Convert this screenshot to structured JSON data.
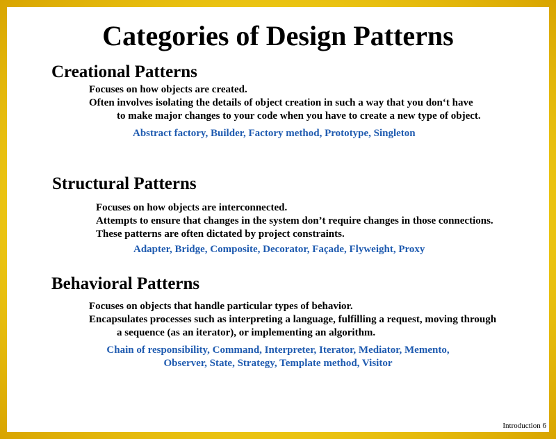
{
  "title": "Categories of Design Patterns",
  "sections": [
    {
      "heading": "Creational Patterns",
      "lines": [
        "Focuses on how objects are created.",
        "Often involves isolating the details of object creation in such  a way that you don‘t have",
        "to make major changes to your code when you have to create a new type of object."
      ],
      "examples": [
        "Abstract factory, Builder, Factory method,  Prototype, Singleton"
      ]
    },
    {
      "heading": "Structural Patterns",
      "lines": [
        "Focuses on how objects are interconnected.",
        "Attempts to ensure that changes in the system don’t require changes in those connections.",
        "These patterns are often dictated by project constraints."
      ],
      "examples": [
        "Adapter, Bridge, Composite, Decorator, Façade, Flyweight, Proxy"
      ]
    },
    {
      "heading": "Behavioral Patterns",
      "lines": [
        "Focuses on objects that handle particular types of behavior.",
        "Encapsulates processes such as interpreting a language, fulfilling a request, moving through",
        "a sequence (as an iterator), or implementing an algorithm."
      ],
      "examples": [
        "Chain of responsibility, Command, Interpreter, Iterator, Mediator, Memento,",
        "Observer, State, Strategy, Template method, Visitor"
      ]
    }
  ],
  "footer": "Introduction 6",
  "colors": {
    "examples": "#1f5bb0",
    "frame": "#f3d21a"
  }
}
